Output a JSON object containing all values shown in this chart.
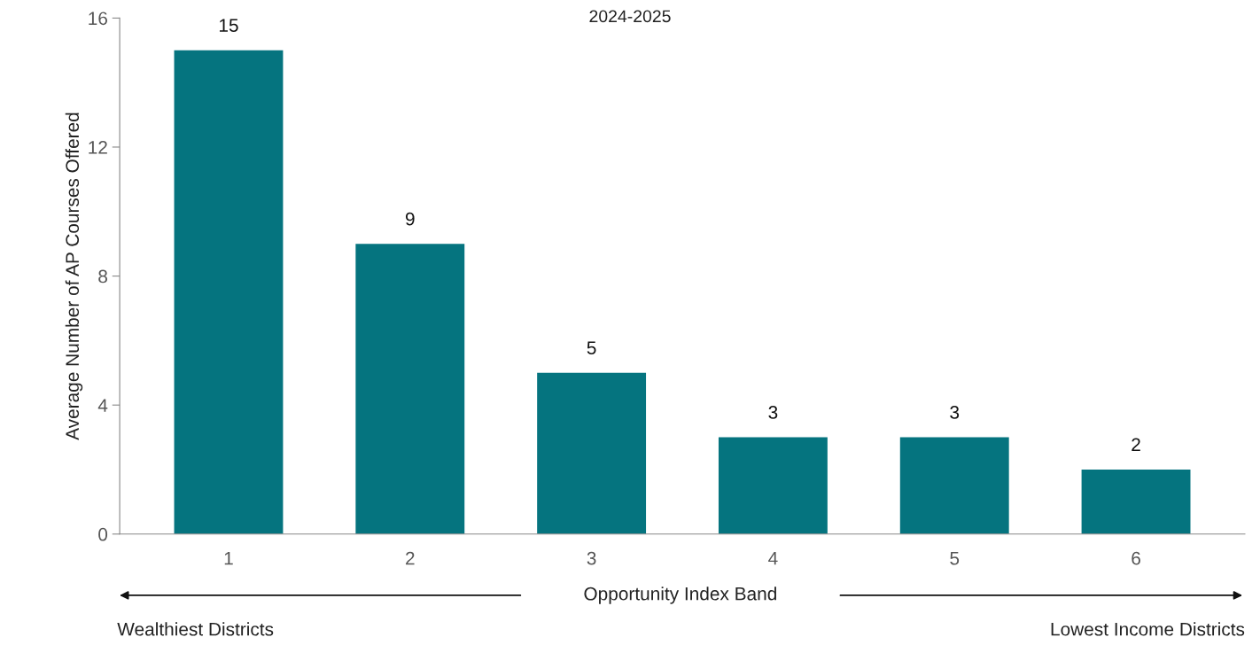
{
  "chart_data": {
    "type": "bar",
    "title": "2024-2025",
    "categories": [
      "1",
      "2",
      "3",
      "4",
      "5",
      "6"
    ],
    "values": [
      15,
      9,
      5,
      3,
      3,
      2
    ],
    "color": "#05747f",
    "ylabel": "Average Number of AP Courses Offered",
    "xlabel": "Opportunity Index Band",
    "annotations": [
      "Wealthiest Districts",
      "Lowest Income Districts"
    ],
    "ylim": [
      0,
      16
    ],
    "yticks": [
      0,
      4,
      8,
      12,
      16
    ],
    "data_labels": true,
    "grid": false,
    "legend": false
  }
}
